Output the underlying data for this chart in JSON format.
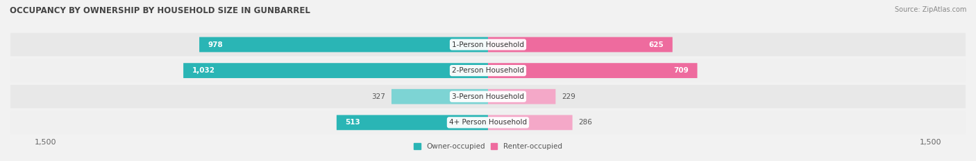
{
  "title": "OCCUPANCY BY OWNERSHIP BY HOUSEHOLD SIZE IN GUNBARREL",
  "source": "Source: ZipAtlas.com",
  "categories": [
    "1-Person Household",
    "2-Person Household",
    "3-Person Household",
    "4+ Person Household"
  ],
  "owner_values": [
    978,
    1032,
    327,
    513
  ],
  "renter_values": [
    625,
    709,
    229,
    286
  ],
  "owner_color_dark": "#2ab5b5",
  "owner_color_light": "#7dd4d4",
  "renter_color_dark": "#ee6b9e",
  "renter_color_light": "#f4a8c8",
  "axis_max": 1500,
  "bg_color": "#f2f2f2",
  "row_bg_even": "#e8e8e8",
  "row_bg_odd": "#f0f0f0",
  "legend_owner": "Owner-occupied",
  "legend_renter": "Renter-occupied",
  "title_fontsize": 8.5,
  "label_fontsize": 7.5,
  "tick_fontsize": 8,
  "source_fontsize": 7,
  "cat_fontsize": 7.5
}
